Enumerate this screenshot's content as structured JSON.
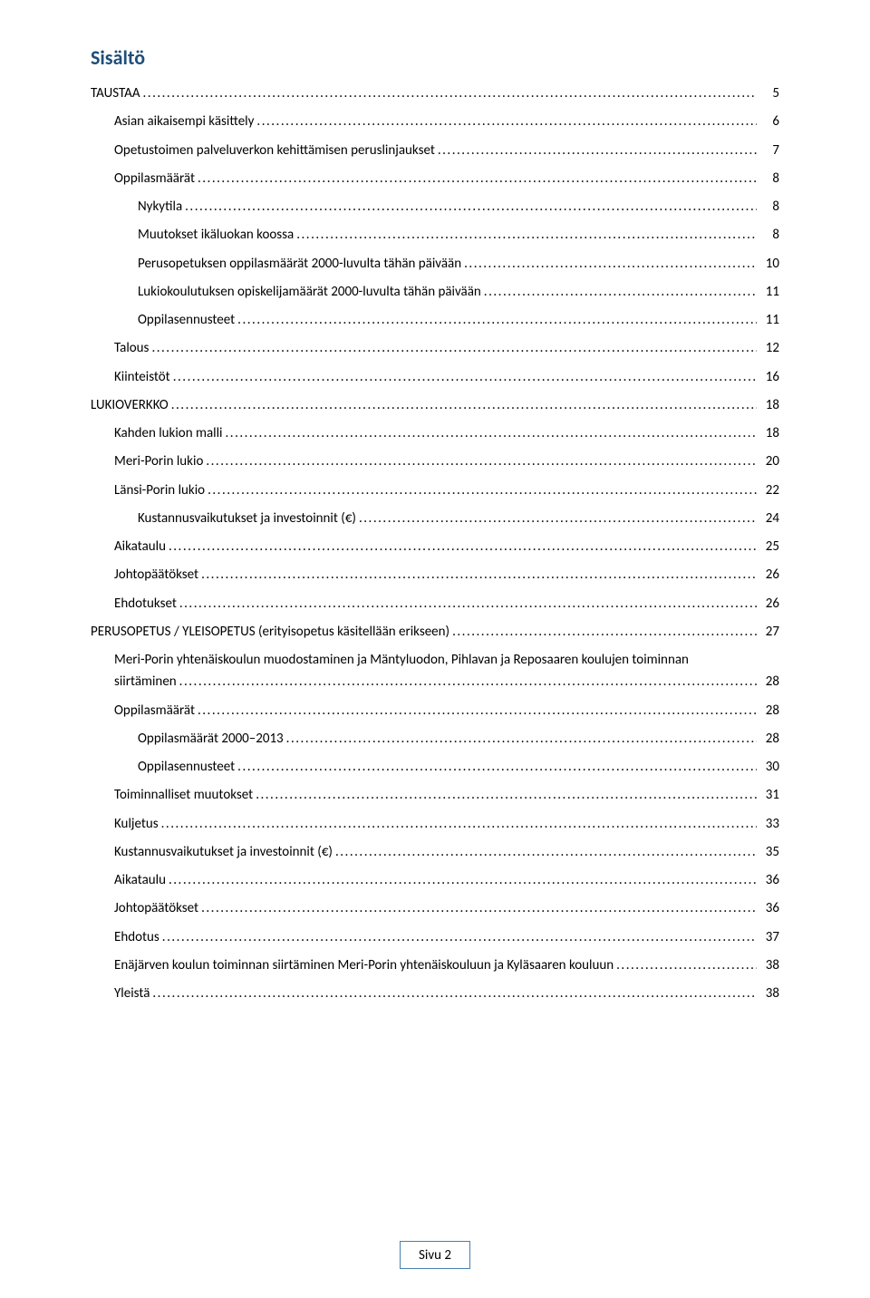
{
  "title": "Sisältö",
  "toc": [
    {
      "label": "TAUSTAA",
      "page": "5",
      "indent": 0
    },
    {
      "label": "Asian aikaisempi käsittely",
      "page": "6",
      "indent": 1
    },
    {
      "label": "Opetustoimen palveluverkon kehittämisen peruslinjaukset",
      "page": "7",
      "indent": 1
    },
    {
      "label": "Oppilasmäärät",
      "page": "8",
      "indent": 1
    },
    {
      "label": "Nykytila",
      "page": "8",
      "indent": 2
    },
    {
      "label": "Muutokset ikäluokan koossa",
      "page": "8",
      "indent": 2
    },
    {
      "label": "Perusopetuksen oppilasmäärät 2000-luvulta tähän päivään",
      "page": "10",
      "indent": 2
    },
    {
      "label": "Lukiokoulutuksen opiskelijamäärät 2000-luvulta tähän päivään",
      "page": "11",
      "indent": 2
    },
    {
      "label": "Oppilasennusteet",
      "page": "11",
      "indent": 2
    },
    {
      "label": "Talous",
      "page": "12",
      "indent": 1
    },
    {
      "label": "Kiinteistöt",
      "page": "16",
      "indent": 1
    },
    {
      "label": "LUKIOVERKKO",
      "page": "18",
      "indent": 0
    },
    {
      "label": "Kahden lukion malli",
      "page": "18",
      "indent": 1
    },
    {
      "label": "Meri-Porin lukio",
      "page": "20",
      "indent": 1
    },
    {
      "label": "Länsi-Porin lukio",
      "page": "22",
      "indent": 1
    },
    {
      "label": "Kustannusvaikutukset ja investoinnit (€)",
      "page": "24",
      "indent": 2
    },
    {
      "label": "Aikataulu",
      "page": "25",
      "indent": 1
    },
    {
      "label": "Johtopäätökset",
      "page": "26",
      "indent": 1
    },
    {
      "label": "Ehdotukset",
      "page": "26",
      "indent": 1
    },
    {
      "label": "PERUSOPETUS / YLEISOPETUS (erityisopetus käsitellään erikseen)",
      "page": "27",
      "indent": 0
    },
    {
      "label_line1": "Meri-Porin yhtenäiskoulun muodostaminen ja Mäntyluodon, Pihlavan ja Reposaaren koulujen toiminnan",
      "label_line2": "siirtäminen",
      "page": "28",
      "indent": 1,
      "two_line": true
    },
    {
      "label": "Oppilasmäärät",
      "page": "28",
      "indent": 1
    },
    {
      "label": "Oppilasmäärät 2000–2013",
      "page": "28",
      "indent": 2
    },
    {
      "label": "Oppilasennusteet",
      "page": "30",
      "indent": 2
    },
    {
      "label": "Toiminnalliset muutokset",
      "page": "31",
      "indent": 1
    },
    {
      "label": "Kuljetus",
      "page": "33",
      "indent": 1
    },
    {
      "label": "Kustannusvaikutukset ja investoinnit (€)",
      "page": "35",
      "indent": 1
    },
    {
      "label": "Aikataulu",
      "page": "36",
      "indent": 1
    },
    {
      "label": "Johtopäätökset",
      "page": "36",
      "indent": 1
    },
    {
      "label": "Ehdotus",
      "page": "37",
      "indent": 1
    },
    {
      "label": "Enäjärven koulun toiminnan siirtäminen Meri-Porin yhtenäiskouluun ja Kyläsaaren kouluun",
      "page": "38",
      "indent": 1
    },
    {
      "label": "Yleistä",
      "page": "38",
      "indent": 1
    }
  ],
  "footer": "Sivu 2"
}
